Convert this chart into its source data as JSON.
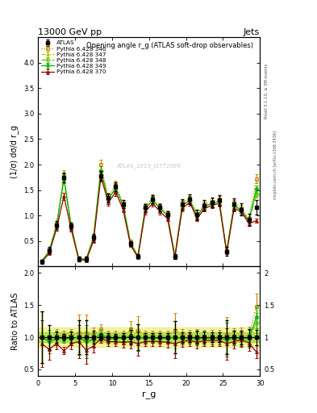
{
  "title_top": "13000 GeV pp",
  "title_right": "Jets",
  "plot_title": "Opening angle r_g (ATLAS soft-drop observables)",
  "xlabel": "r_g",
  "ylabel_main": "(1/σ) dσ/d r_g",
  "ylabel_ratio": "Ratio to ATLAS",
  "watermark": "ATLAS_2019_I1772069",
  "right_label": "mcplots.cern.ch [arXiv:1306.3436]",
  "right_label2": "Rivet 3.1.10, ≥ 3M events",
  "xlim": [
    0,
    30
  ],
  "ylim_main": [
    0,
    4.5
  ],
  "ylim_ratio": [
    0.4,
    2.1
  ],
  "ratio_yticks": [
    0.5,
    1.0,
    1.5,
    2.0
  ],
  "main_yticks": [
    0.5,
    1.0,
    1.5,
    2.0,
    2.5,
    3.0,
    3.5,
    4.0
  ],
  "x_data": [
    0.5,
    1.5,
    2.5,
    3.5,
    4.5,
    5.5,
    6.5,
    7.5,
    8.5,
    9.5,
    10.5,
    11.5,
    12.5,
    13.5,
    14.5,
    15.5,
    16.5,
    17.5,
    18.5,
    19.5,
    20.5,
    21.5,
    22.5,
    23.5,
    24.5,
    25.5,
    26.5,
    27.5,
    28.5,
    29.5
  ],
  "atlas_y": [
    0.1,
    0.32,
    0.82,
    1.75,
    0.8,
    0.15,
    0.15,
    0.58,
    1.78,
    1.35,
    1.57,
    1.22,
    0.45,
    0.2,
    1.16,
    1.32,
    1.16,
    1.02,
    0.2,
    1.22,
    1.32,
    1.02,
    1.2,
    1.26,
    1.3,
    0.3,
    1.22,
    1.12,
    0.92,
    1.16
  ],
  "atlas_yerr": [
    0.04,
    0.06,
    0.07,
    0.09,
    0.07,
    0.04,
    0.04,
    0.06,
    0.09,
    0.08,
    0.09,
    0.08,
    0.05,
    0.04,
    0.07,
    0.08,
    0.07,
    0.07,
    0.05,
    0.1,
    0.1,
    0.1,
    0.1,
    0.1,
    0.1,
    0.08,
    0.12,
    0.12,
    0.12,
    0.14
  ],
  "py346_y": [
    0.1,
    0.32,
    0.84,
    1.8,
    0.82,
    0.16,
    0.16,
    0.6,
    2.0,
    1.38,
    1.6,
    1.24,
    0.5,
    0.22,
    1.18,
    1.35,
    1.18,
    1.04,
    0.22,
    1.25,
    1.35,
    1.04,
    1.22,
    1.28,
    1.32,
    0.31,
    1.25,
    1.15,
    0.94,
    1.72
  ],
  "py347_y": [
    0.1,
    0.3,
    0.8,
    1.72,
    0.78,
    0.15,
    0.14,
    0.56,
    1.88,
    1.32,
    1.54,
    1.2,
    0.46,
    0.2,
    1.14,
    1.3,
    1.14,
    1.0,
    0.2,
    1.2,
    1.3,
    1.0,
    1.18,
    1.24,
    1.28,
    0.29,
    1.2,
    1.1,
    0.9,
    1.42
  ],
  "py348_y": [
    0.1,
    0.3,
    0.8,
    1.72,
    0.78,
    0.15,
    0.14,
    0.56,
    1.88,
    1.32,
    1.54,
    1.2,
    0.46,
    0.2,
    1.14,
    1.3,
    1.14,
    1.0,
    0.2,
    1.2,
    1.3,
    1.0,
    1.18,
    1.24,
    1.28,
    0.29,
    1.2,
    1.1,
    0.9,
    1.42
  ],
  "py349_y": [
    0.1,
    0.3,
    0.8,
    1.72,
    0.78,
    0.15,
    0.14,
    0.56,
    1.88,
    1.32,
    1.54,
    1.2,
    0.46,
    0.2,
    1.14,
    1.3,
    1.14,
    1.0,
    0.2,
    1.2,
    1.3,
    1.0,
    1.18,
    1.24,
    1.28,
    0.29,
    1.2,
    1.1,
    0.9,
    1.52
  ],
  "py370_y": [
    0.09,
    0.26,
    0.74,
    1.38,
    0.72,
    0.14,
    0.12,
    0.5,
    1.76,
    1.26,
    1.46,
    1.12,
    0.42,
    0.18,
    1.08,
    1.24,
    1.08,
    0.94,
    0.18,
    1.14,
    1.26,
    0.94,
    1.14,
    1.2,
    1.24,
    0.27,
    1.14,
    1.08,
    0.84,
    0.9
  ],
  "colors": [
    "#cc8800",
    "#aacc00",
    "#66cc00",
    "#00bb00",
    "#990000"
  ],
  "markers": [
    "s",
    "^",
    "D",
    "o",
    "^"
  ],
  "fills": [
    false,
    false,
    false,
    true,
    false
  ],
  "linestyles": [
    "dotted",
    "dashed",
    "dashdot",
    "solid",
    "solid"
  ],
  "labels": [
    "Pythia 6.428 346",
    "Pythia 6.428 347",
    "Pythia 6.428 348",
    "Pythia 6.428 349",
    "Pythia 6.428 370"
  ],
  "band_inner_lo": 0.92,
  "band_inner_hi": 1.08,
  "band_outer_lo": 0.85,
  "band_outer_hi": 1.15
}
